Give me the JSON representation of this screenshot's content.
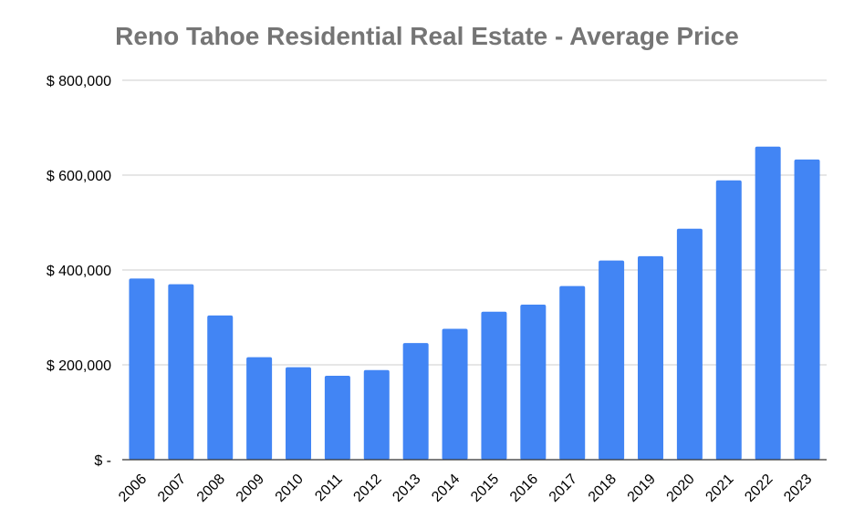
{
  "chart_data": {
    "type": "bar",
    "title": "Reno Tahoe Residential Real Estate - Average Price",
    "xlabel": "",
    "ylabel": "",
    "categories": [
      "2006",
      "2007",
      "2008",
      "2009",
      "2010",
      "2011",
      "2012",
      "2013",
      "2014",
      "2015",
      "2016",
      "2017",
      "2018",
      "2019",
      "2020",
      "2021",
      "2022",
      "2023"
    ],
    "values": [
      382000,
      370000,
      304000,
      216000,
      195000,
      177000,
      189000,
      246000,
      276000,
      312000,
      327000,
      366000,
      420000,
      429000,
      487000,
      589000,
      660000,
      633000
    ],
    "ylim": [
      0,
      800000
    ],
    "y_ticks": [
      {
        "value": 0,
        "label": "$ -"
      },
      {
        "value": 200000,
        "label": "$ 200,000"
      },
      {
        "value": 400000,
        "label": "$ 400,000"
      },
      {
        "value": 600000,
        "label": "$ 600,000"
      },
      {
        "value": 800000,
        "label": "$ 800,000"
      }
    ],
    "grid": true,
    "legend": "none",
    "bar_color": "#4285f4",
    "grid_color": "#cccccc",
    "axis_color": "#333333",
    "title_color": "#757575"
  }
}
